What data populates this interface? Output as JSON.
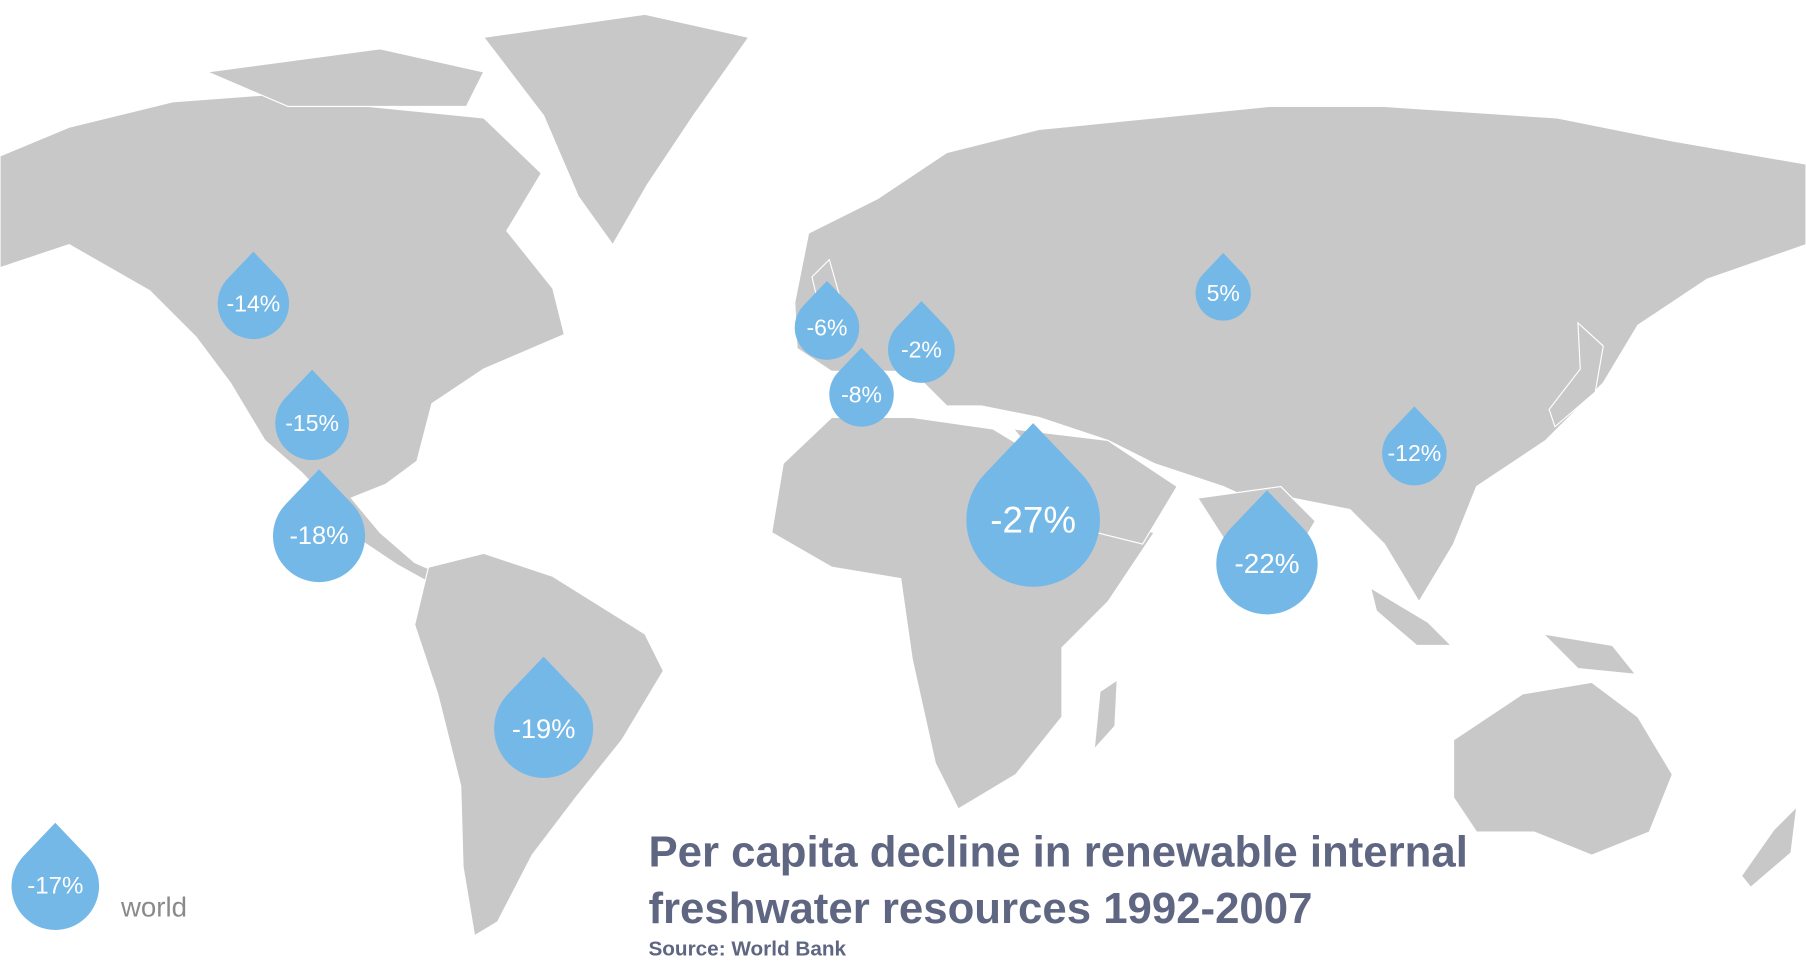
{
  "title": [
    "Per capita decline in renewable internal",
    "freshwater resources 1992-2007"
  ],
  "source": "Source: World Bank",
  "drops": [
    {
      "label": "-14%"
    },
    {
      "label": "-15%"
    },
    {
      "label": "-18%"
    },
    {
      "label": "-19%"
    },
    {
      "label": "-6%"
    },
    {
      "label": "-2%"
    },
    {
      "label": "-8%"
    },
    {
      "label": "5%"
    },
    {
      "label": "-27%"
    },
    {
      "label": "-22%"
    },
    {
      "label": "-12%"
    }
  ],
  "legend": {
    "label": "-17%",
    "text": "world"
  }
}
